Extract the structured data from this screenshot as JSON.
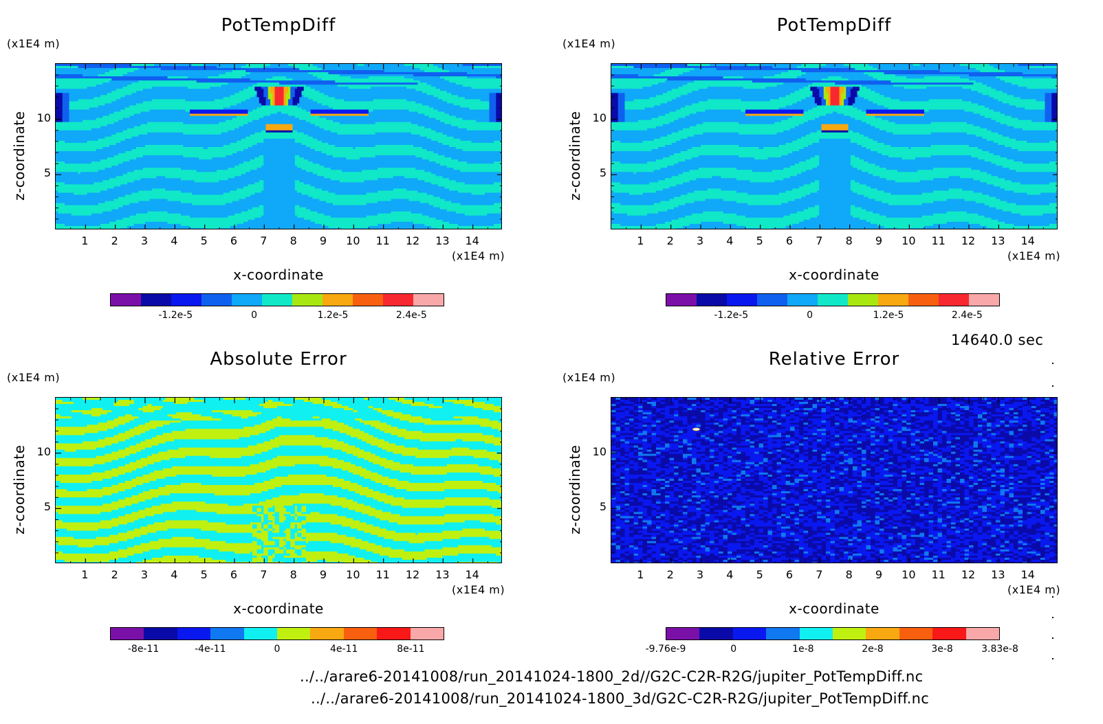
{
  "chart_data": [
    {
      "type": "heatmap",
      "title": "PotTempDiff",
      "xlabel": "x-coordinate",
      "ylabel": "z-coordinate",
      "x_unit": "(x1E4 m)",
      "y_unit": "(x1E4 m)",
      "xlim": [
        0,
        15
      ],
      "ylim": [
        0,
        15
      ],
      "x_ticks": [
        1,
        2,
        3,
        4,
        5,
        6,
        7,
        8,
        9,
        10,
        11,
        12,
        13,
        14
      ],
      "y_ticks": [
        5,
        10
      ],
      "colorbar": {
        "colors": [
          "#7b10a8",
          "#0a0aa8",
          "#0a18f0",
          "#1060f0",
          "#10a8f8",
          "#10e8c8",
          "#a8e810",
          "#f8a810",
          "#f86010",
          "#f82830",
          "#f8a8a8"
        ],
        "tick_labels": [
          "-1.2e-5",
          "0",
          "1.2e-5",
          "2.4e-5"
        ],
        "tick_values": [
          -1.2e-05,
          0,
          1.2e-05,
          2.4e-05
        ],
        "range": [
          -2.2e-05,
          2.9e-05
        ]
      }
    },
    {
      "type": "heatmap",
      "title": "PotTempDiff",
      "xlabel": "x-coordinate",
      "ylabel": "z-coordinate",
      "x_unit": "(x1E4 m)",
      "y_unit": "(x1E4 m)",
      "xlim": [
        0,
        15
      ],
      "ylim": [
        0,
        15
      ],
      "x_ticks": [
        1,
        2,
        3,
        4,
        5,
        6,
        7,
        8,
        9,
        10,
        11,
        12,
        13,
        14
      ],
      "y_ticks": [
        5,
        10
      ],
      "colorbar": {
        "colors": [
          "#7b10a8",
          "#0a0aa8",
          "#0a18f0",
          "#1060f0",
          "#10a8f8",
          "#10e8c8",
          "#a8e810",
          "#f8a810",
          "#f86010",
          "#f82830",
          "#f8a8a8"
        ],
        "tick_labels": [
          "-1.2e-5",
          "0",
          "1.2e-5",
          "2.4e-5"
        ],
        "tick_values": [
          -1.2e-05,
          0,
          1.2e-05,
          2.4e-05
        ],
        "range": [
          -2.2e-05,
          2.9e-05
        ]
      }
    },
    {
      "type": "heatmap",
      "title": "Absolute Error",
      "xlabel": "x-coordinate",
      "ylabel": "z-coordinate",
      "x_unit": "(x1E4 m)",
      "y_unit": "(x1E4 m)",
      "xlim": [
        0,
        15
      ],
      "ylim": [
        0,
        15
      ],
      "x_ticks": [
        1,
        2,
        3,
        4,
        5,
        6,
        7,
        8,
        9,
        10,
        11,
        12,
        13,
        14
      ],
      "y_ticks": [
        5,
        10
      ],
      "colorbar": {
        "colors": [
          "#7b10a8",
          "#0a0aa8",
          "#0a18f0",
          "#1078f0",
          "#10f0f0",
          "#c0f010",
          "#f8a810",
          "#f86010",
          "#f81818",
          "#f8a8a8"
        ],
        "tick_labels": [
          "-8e-11",
          "-4e-11",
          "0",
          "4e-11",
          "8e-11"
        ],
        "tick_values": [
          -8e-11,
          -4e-11,
          0,
          4e-11,
          8e-11
        ],
        "range": [
          -1e-10,
          1e-10
        ]
      }
    },
    {
      "type": "heatmap",
      "title": "Relative Error",
      "xlabel": "x-coordinate",
      "ylabel": "z-coordinate",
      "x_unit": "(x1E4 m)",
      "y_unit": "(x1E4 m)",
      "xlim": [
        0,
        15
      ],
      "ylim": [
        0,
        15
      ],
      "x_ticks": [
        1,
        2,
        3,
        4,
        5,
        6,
        7,
        8,
        9,
        10,
        11,
        12,
        13,
        14
      ],
      "y_ticks": [
        5,
        10
      ],
      "colorbar": {
        "colors": [
          "#7b10a8",
          "#0a0aa8",
          "#0a18f0",
          "#1078f0",
          "#10f0f0",
          "#c0f010",
          "#f8a810",
          "#f86010",
          "#f81818",
          "#f8a8a8"
        ],
        "tick_labels": [
          "-9.76e-9",
          "0",
          "1e-8",
          "2e-8",
          "3e-8",
          "3.83e-8"
        ],
        "tick_values": [
          -9.76e-09,
          0,
          1e-08,
          2e-08,
          3e-08,
          3.83e-08
        ],
        "range": [
          -9.76e-09,
          3.83e-08
        ]
      }
    }
  ],
  "time_label": "14640.0 sec",
  "files": [
    "../../arare6-20141008/run_20141024-1800_2d//G2C-C2R-R2G/jupiter_PotTempDiff.nc",
    "../../arare6-20141008/run_20141024-1800_3d/G2C-C2R-R2G/jupiter_PotTempDiff.nc"
  ]
}
